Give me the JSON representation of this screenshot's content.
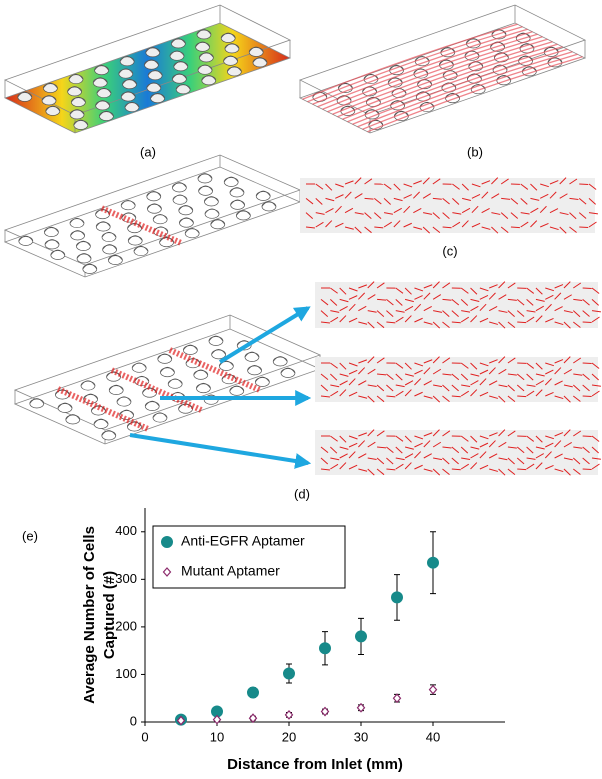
{
  "panels": {
    "a": "(a)",
    "b": "(b)",
    "c": "(c)",
    "d": "(d)",
    "e": "(e)"
  },
  "chart_data": {
    "type": "scatter",
    "xlabel": "Distance from Inlet (mm)",
    "ylabel": [
      "Average Number of Cells",
      "Captured (#)"
    ],
    "xlim": [
      0,
      50
    ],
    "xticks": [
      0,
      10,
      20,
      30,
      40
    ],
    "ylim": [
      0,
      450
    ],
    "yticks": [
      0,
      100,
      200,
      300,
      400
    ],
    "legend": "upper left",
    "series": [
      {
        "name": "Anti-EGFR Aptamer",
        "color": "#178a8a",
        "marker": "circle",
        "x": [
          5,
          10,
          15,
          20,
          25,
          30,
          35,
          40
        ],
        "values": [
          5,
          22,
          62,
          102,
          155,
          180,
          262,
          335
        ],
        "errors": [
          3,
          8,
          10,
          20,
          35,
          38,
          48,
          65
        ]
      },
      {
        "name": "Mutant Aptamer",
        "color": "#8b2a6b",
        "marker": "diamond",
        "x": [
          5,
          10,
          15,
          20,
          25,
          30,
          35,
          40
        ],
        "values": [
          3,
          5,
          8,
          15,
          22,
          30,
          50,
          68
        ],
        "errors": [
          2,
          3,
          4,
          5,
          5,
          6,
          8,
          10
        ]
      }
    ]
  }
}
